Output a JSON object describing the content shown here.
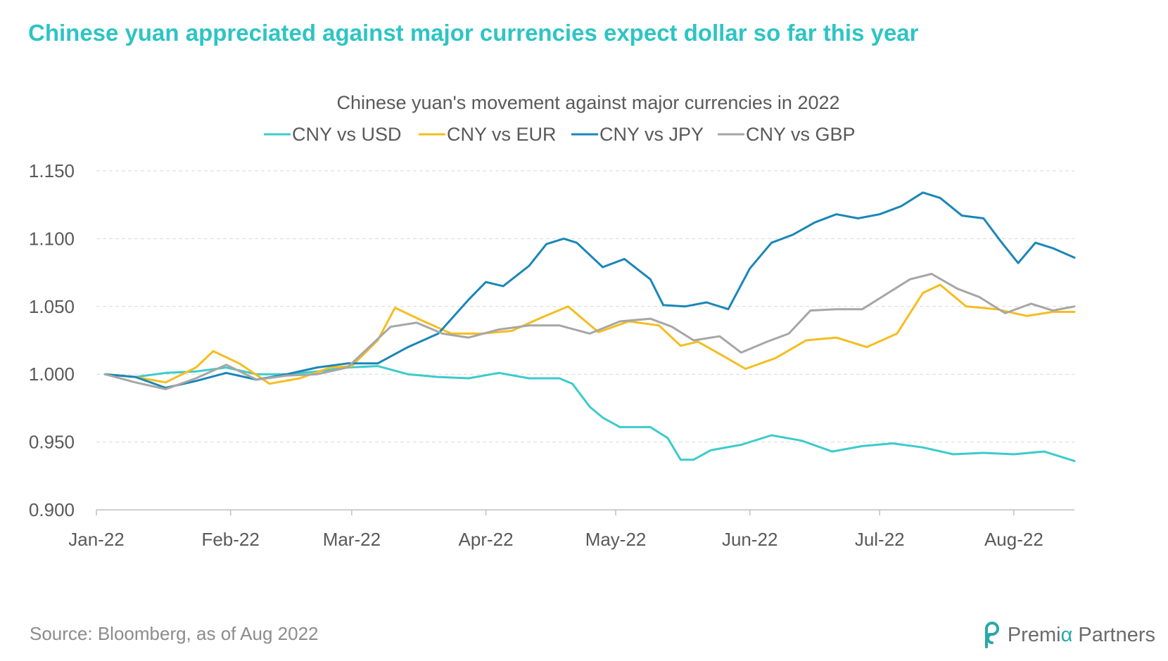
{
  "headline": "Chinese yuan appreciated against major currencies expect dollar so far this year",
  "source": "Source: Bloomberg, as of Aug 2022",
  "logo": {
    "pre": "Premi",
    "alpha": "α",
    "post": " Partners",
    "icon": "premia-logo-icon",
    "color": "#2aa8a8"
  },
  "chart_data": {
    "type": "line",
    "title": "Chinese yuan's movement against major currencies in 2022",
    "legend_position": "top",
    "grid": true,
    "ylim": [
      0.9,
      1.15
    ],
    "yticks": [
      "0.900",
      "0.950",
      "1.000",
      "1.050",
      "1.100",
      "1.150"
    ],
    "ytick_values": [
      0.9,
      0.95,
      1.0,
      1.05,
      1.1,
      1.15
    ],
    "xlim": [
      "2022-01-01",
      "2022-08-15"
    ],
    "xticks": [
      {
        "label": "Jan-22",
        "date": "2022-01-01"
      },
      {
        "label": "Feb-22",
        "date": "2022-02-01"
      },
      {
        "label": "Mar-22",
        "date": "2022-03-01"
      },
      {
        "label": "Apr-22",
        "date": "2022-04-01"
      },
      {
        "label": "May-22",
        "date": "2022-05-01"
      },
      {
        "label": "Jun-22",
        "date": "2022-06-01"
      },
      {
        "label": "Jul-22",
        "date": "2022-07-01"
      },
      {
        "label": "Aug-22",
        "date": "2022-08-01"
      }
    ],
    "series": [
      {
        "name": "CNY vs USD",
        "color": "#3ccbcb",
        "x": [
          "2022-01-03",
          "2022-01-10",
          "2022-01-17",
          "2022-01-24",
          "2022-01-31",
          "2022-02-07",
          "2022-02-14",
          "2022-02-21",
          "2022-02-28",
          "2022-03-07",
          "2022-03-14",
          "2022-03-21",
          "2022-03-28",
          "2022-04-04",
          "2022-04-11",
          "2022-04-18",
          "2022-04-21",
          "2022-04-25",
          "2022-04-28",
          "2022-05-02",
          "2022-05-09",
          "2022-05-13",
          "2022-05-16",
          "2022-05-19",
          "2022-05-23",
          "2022-05-30",
          "2022-06-06",
          "2022-06-13",
          "2022-06-20",
          "2022-06-27",
          "2022-07-04",
          "2022-07-11",
          "2022-07-18",
          "2022-07-25",
          "2022-08-01",
          "2022-08-08",
          "2022-08-15"
        ],
        "values": [
          1.0,
          0.998,
          1.001,
          1.002,
          1.005,
          1.0,
          1.0,
          1.002,
          1.005,
          1.006,
          1.0,
          0.998,
          0.997,
          1.001,
          0.997,
          0.997,
          0.993,
          0.976,
          0.968,
          0.961,
          0.961,
          0.953,
          0.937,
          0.937,
          0.944,
          0.948,
          0.955,
          0.951,
          0.943,
          0.947,
          0.949,
          0.946,
          0.941,
          0.942,
          0.941,
          0.943,
          0.936
        ]
      },
      {
        "name": "CNY vs EUR",
        "color": "#f5bd1f",
        "x": [
          "2022-01-03",
          "2022-01-10",
          "2022-01-17",
          "2022-01-24",
          "2022-01-28",
          "2022-02-03",
          "2022-02-10",
          "2022-02-17",
          "2022-02-24",
          "2022-03-01",
          "2022-03-07",
          "2022-03-11",
          "2022-03-17",
          "2022-03-24",
          "2022-03-31",
          "2022-04-07",
          "2022-04-14",
          "2022-04-20",
          "2022-04-27",
          "2022-05-04",
          "2022-05-11",
          "2022-05-16",
          "2022-05-20",
          "2022-05-25",
          "2022-05-31",
          "2022-06-07",
          "2022-06-14",
          "2022-06-21",
          "2022-06-28",
          "2022-07-05",
          "2022-07-11",
          "2022-07-15",
          "2022-07-21",
          "2022-07-28",
          "2022-08-04",
          "2022-08-10",
          "2022-08-15"
        ],
        "values": [
          1.0,
          0.998,
          0.994,
          1.005,
          1.017,
          1.008,
          0.993,
          0.997,
          1.005,
          1.006,
          1.025,
          1.049,
          1.04,
          1.03,
          1.03,
          1.032,
          1.042,
          1.05,
          1.031,
          1.039,
          1.036,
          1.021,
          1.024,
          1.015,
          1.004,
          1.012,
          1.025,
          1.027,
          1.02,
          1.03,
          1.06,
          1.066,
          1.05,
          1.048,
          1.043,
          1.046,
          1.046
        ]
      },
      {
        "name": "CNY vs JPY",
        "color": "#1a86b8",
        "x": [
          "2022-01-03",
          "2022-01-10",
          "2022-01-17",
          "2022-01-24",
          "2022-01-31",
          "2022-02-07",
          "2022-02-14",
          "2022-02-21",
          "2022-02-28",
          "2022-03-07",
          "2022-03-14",
          "2022-03-21",
          "2022-03-28",
          "2022-04-01",
          "2022-04-05",
          "2022-04-11",
          "2022-04-15",
          "2022-04-19",
          "2022-04-22",
          "2022-04-28",
          "2022-05-03",
          "2022-05-09",
          "2022-05-12",
          "2022-05-17",
          "2022-05-22",
          "2022-05-27",
          "2022-06-01",
          "2022-06-06",
          "2022-06-11",
          "2022-06-16",
          "2022-06-21",
          "2022-06-26",
          "2022-07-01",
          "2022-07-06",
          "2022-07-11",
          "2022-07-15",
          "2022-07-20",
          "2022-07-25",
          "2022-07-29",
          "2022-08-02",
          "2022-08-06",
          "2022-08-10",
          "2022-08-15"
        ],
        "values": [
          1.0,
          0.998,
          0.99,
          0.995,
          1.001,
          0.996,
          1.0,
          1.005,
          1.008,
          1.008,
          1.02,
          1.03,
          1.055,
          1.068,
          1.065,
          1.08,
          1.096,
          1.1,
          1.097,
          1.079,
          1.085,
          1.07,
          1.051,
          1.05,
          1.053,
          1.048,
          1.078,
          1.097,
          1.103,
          1.112,
          1.118,
          1.115,
          1.118,
          1.124,
          1.134,
          1.13,
          1.117,
          1.115,
          1.098,
          1.082,
          1.097,
          1.093,
          1.086
        ]
      },
      {
        "name": "CNY vs GBP",
        "color": "#a6a6a6",
        "x": [
          "2022-01-03",
          "2022-01-10",
          "2022-01-17",
          "2022-01-24",
          "2022-01-31",
          "2022-02-07",
          "2022-02-14",
          "2022-02-21",
          "2022-02-28",
          "2022-03-05",
          "2022-03-10",
          "2022-03-16",
          "2022-03-22",
          "2022-03-28",
          "2022-04-04",
          "2022-04-11",
          "2022-04-18",
          "2022-04-25",
          "2022-05-02",
          "2022-05-09",
          "2022-05-14",
          "2022-05-19",
          "2022-05-25",
          "2022-05-30",
          "2022-06-05",
          "2022-06-10",
          "2022-06-15",
          "2022-06-21",
          "2022-06-27",
          "2022-07-03",
          "2022-07-08",
          "2022-07-13",
          "2022-07-19",
          "2022-07-24",
          "2022-07-30",
          "2022-08-05",
          "2022-08-10",
          "2022-08-15"
        ],
        "values": [
          1.0,
          0.994,
          0.989,
          0.997,
          1.007,
          0.996,
          0.999,
          1.0,
          1.005,
          1.02,
          1.035,
          1.038,
          1.03,
          1.027,
          1.033,
          1.036,
          1.036,
          1.03,
          1.039,
          1.041,
          1.035,
          1.025,
          1.028,
          1.016,
          1.024,
          1.03,
          1.047,
          1.048,
          1.048,
          1.06,
          1.07,
          1.074,
          1.063,
          1.057,
          1.045,
          1.052,
          1.047,
          1.05
        ]
      }
    ]
  }
}
